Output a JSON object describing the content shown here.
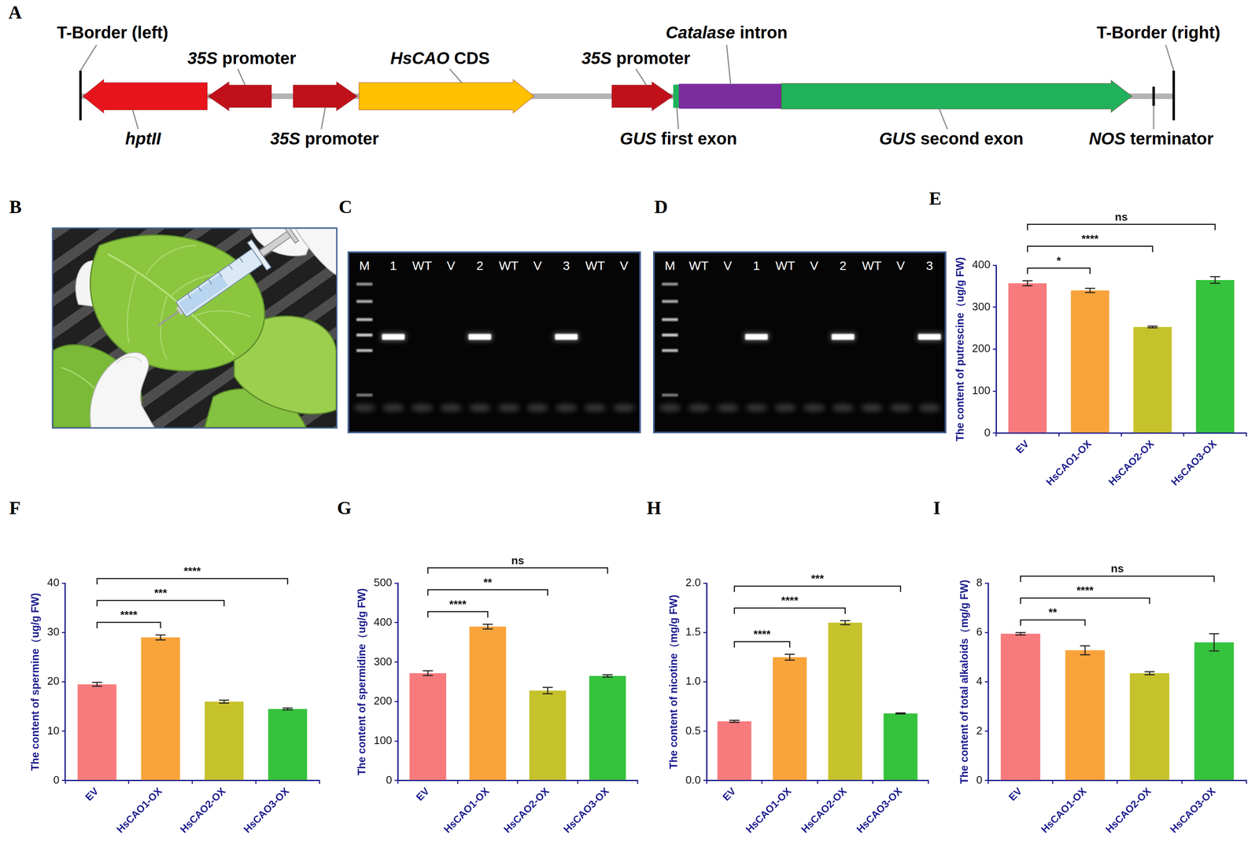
{
  "diagram": {
    "panel": "A",
    "elements": [
      {
        "text": "T-Border (left)",
        "italic": null,
        "color": "#000000"
      },
      {
        "text": "hptII",
        "italic": "hptII",
        "color": "#e8141c"
      },
      {
        "text": "35S promoter",
        "italic": "35S",
        "color": "#c0111b"
      },
      {
        "text": "35S promoter",
        "italic": "35S",
        "color": "#c0111b"
      },
      {
        "text": "HsCAO CDS",
        "italic": "HsCAO",
        "color": "#ffc000"
      },
      {
        "text": "35S promoter",
        "italic": "35S",
        "color": "#c0111b"
      },
      {
        "text": "GUS first exon",
        "italic": "GUS",
        "color": "#1fb25a"
      },
      {
        "text": "Catalase intron",
        "italic": "Catalase",
        "color": "#7b2c9e"
      },
      {
        "text": "GUS second exon",
        "italic": "GUS",
        "color": "#21b15b"
      },
      {
        "text": "NOS terminator",
        "italic": "NOS",
        "color": "#000000"
      },
      {
        "text": "T-Border (right)",
        "italic": null,
        "color": "#000000"
      }
    ]
  },
  "illustration": {
    "panel": "B"
  },
  "gels": [
    {
      "panel": "C",
      "lanes": [
        {
          "name": "M",
          "ladder": true
        },
        {
          "name": "1",
          "band": true
        },
        {
          "name": "WT",
          "band": false
        },
        {
          "name": "V",
          "band": false
        },
        {
          "name": "2",
          "band": true
        },
        {
          "name": "WT",
          "band": false
        },
        {
          "name": "V",
          "band": false
        },
        {
          "name": "3",
          "band": true
        },
        {
          "name": "WT",
          "band": false
        },
        {
          "name": "V",
          "band": false
        }
      ]
    },
    {
      "panel": "D",
      "lanes": [
        {
          "name": "M",
          "ladder": true
        },
        {
          "name": "WT",
          "band": false
        },
        {
          "name": "V",
          "band": false
        },
        {
          "name": "1",
          "band": true
        },
        {
          "name": "WT",
          "band": false
        },
        {
          "name": "V",
          "band": false
        },
        {
          "name": "2",
          "band": true
        },
        {
          "name": "WT",
          "band": false
        },
        {
          "name": "V",
          "band": false
        },
        {
          "name": "3",
          "band": true
        }
      ]
    }
  ],
  "chart_data": [
    {
      "panel": "E",
      "type": "bar",
      "y_label": "The content of putrescine（ug/g FW)",
      "categories": [
        "EV",
        "HsCAO1-OX",
        "HsCAO2-OX",
        "HsCAO3-OX"
      ],
      "values": [
        357,
        340,
        253,
        365
      ],
      "error": [
        6,
        5,
        2,
        8
      ],
      "colors": [
        "#f77b7d",
        "#f9a33b",
        "#c6c22b",
        "#35c23c"
      ],
      "ylim": [
        0,
        400
      ],
      "yticks": [
        0,
        100,
        200,
        300,
        400
      ],
      "grid": false,
      "comparisons": [
        {
          "from": "EV",
          "to": "HsCAO1-OX",
          "label": "*"
        },
        {
          "from": "EV",
          "to": "HsCAO2-OX",
          "label": "****"
        },
        {
          "from": "EV",
          "to": "HsCAO3-OX",
          "label": "ns"
        }
      ]
    },
    {
      "panel": "F",
      "type": "bar",
      "y_label": "The content of spermine（ug/g FW)",
      "categories": [
        "EV",
        "HsCAO1-OX",
        "HsCAO2-OX",
        "HsCAO3-OX"
      ],
      "values": [
        19.5,
        29,
        16,
        14.5
      ],
      "error": [
        0.4,
        0.5,
        0.3,
        0.2
      ],
      "colors": [
        "#f77b7d",
        "#f9a33b",
        "#c6c22b",
        "#35c23c"
      ],
      "ylim": [
        0,
        40
      ],
      "yticks": [
        0,
        10,
        20,
        30,
        40
      ],
      "grid": false,
      "comparisons": [
        {
          "from": "EV",
          "to": "HsCAO1-OX",
          "label": "****"
        },
        {
          "from": "EV",
          "to": "HsCAO2-OX",
          "label": "***"
        },
        {
          "from": "EV",
          "to": "HsCAO3-OX",
          "label": "****"
        }
      ]
    },
    {
      "panel": "G",
      "type": "bar",
      "y_label": "The content of spermidine（ug/g FW)",
      "categories": [
        "EV",
        "HsCAO1-OX",
        "HsCAO2-OX",
        "HsCAO3-OX"
      ],
      "values": [
        272,
        390,
        228,
        265
      ],
      "error": [
        6,
        6,
        8,
        3
      ],
      "colors": [
        "#f77b7d",
        "#f9a33b",
        "#c6c22b",
        "#35c23c"
      ],
      "ylim": [
        0,
        500
      ],
      "yticks": [
        0,
        100,
        200,
        300,
        400,
        500
      ],
      "grid": false,
      "comparisons": [
        {
          "from": "EV",
          "to": "HsCAO1-OX",
          "label": "****"
        },
        {
          "from": "EV",
          "to": "HsCAO2-OX",
          "label": "**"
        },
        {
          "from": "EV",
          "to": "HsCAO3-OX",
          "label": "ns"
        }
      ]
    },
    {
      "panel": "H",
      "type": "bar",
      "y_label": "The content of nicotine（mg/g FW)",
      "categories": [
        "EV",
        "HsCAO1-OX",
        "HsCAO2-OX",
        "HsCAO3-OX"
      ],
      "values": [
        0.6,
        1.25,
        1.6,
        0.68
      ],
      "error": [
        0.01,
        0.03,
        0.02,
        0.005
      ],
      "colors": [
        "#f77b7d",
        "#f9a33b",
        "#c6c22b",
        "#35c23c"
      ],
      "ylim": [
        0,
        2
      ],
      "yticks": [
        {
          "value": 0,
          "label": "0.0"
        },
        0.5,
        {
          "value": 1,
          "label": "1.0"
        },
        1.5,
        {
          "value": 2,
          "label": "2.0"
        }
      ],
      "grid": false,
      "comparisons": [
        {
          "from": "EV",
          "to": "HsCAO1-OX",
          "label": "****"
        },
        {
          "from": "EV",
          "to": "HsCAO2-OX",
          "label": "****"
        },
        {
          "from": "EV",
          "to": "HsCAO3-OX",
          "label": "***"
        }
      ]
    },
    {
      "panel": "I",
      "type": "bar",
      "y_label": "The content of total alkaloids（mg/g FW)",
      "categories": [
        "EV",
        "HsCAO1-OX",
        "HsCAO2-OX",
        "HsCAO3-OX"
      ],
      "values": [
        5.95,
        5.28,
        4.35,
        5.6
      ],
      "error": [
        0.05,
        0.18,
        0.06,
        0.35
      ],
      "colors": [
        "#f77b7d",
        "#f9a33b",
        "#c6c22b",
        "#35c23c"
      ],
      "ylim": [
        0,
        8
      ],
      "yticks": [
        0,
        2,
        4,
        6,
        8
      ],
      "grid": false,
      "comparisons": [
        {
          "from": "EV",
          "to": "HsCAO1-OX",
          "label": "**"
        },
        {
          "from": "EV",
          "to": "HsCAO2-OX",
          "label": "****"
        },
        {
          "from": "EV",
          "to": "HsCAO3-OX",
          "label": "ns"
        }
      ]
    }
  ]
}
